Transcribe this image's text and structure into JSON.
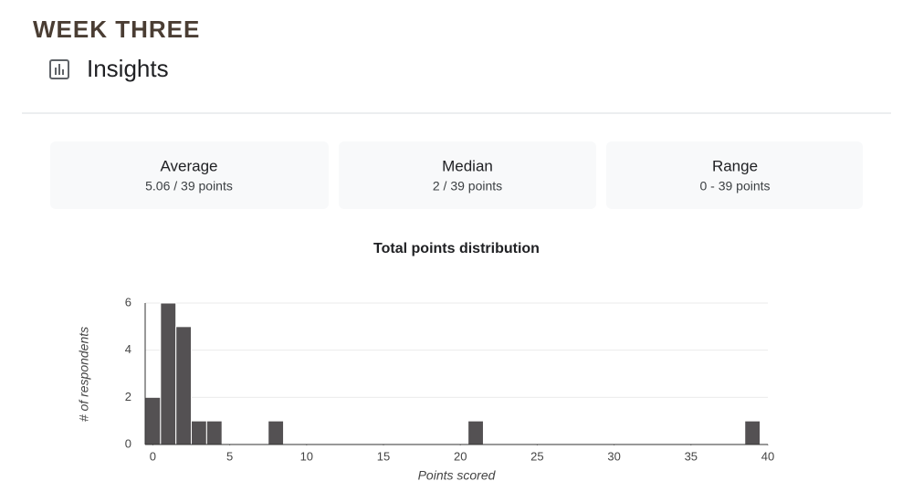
{
  "header": {
    "title": "WEEK THREE",
    "section": "Insights"
  },
  "stats": [
    {
      "label": "Average",
      "value": "5.06 / 39 points"
    },
    {
      "label": "Median",
      "value": "2 / 39 points"
    },
    {
      "label": "Range",
      "value": "0 - 39 points"
    }
  ],
  "chart_data": {
    "type": "histogram",
    "title": "Total points distribution",
    "x_label": "Points scored",
    "y_label": "# of respondents",
    "bins": [
      -0.5,
      0.5,
      1.5,
      2.5,
      3.5,
      4.5,
      5.5,
      6.5,
      7.5,
      8.5,
      9.5,
      10.5,
      11.5,
      12.5,
      13.5,
      14.5,
      15.5,
      16.5,
      17.5,
      18.5,
      19.5,
      20.5,
      21.5,
      22.5,
      23.5,
      24.5,
      25.5,
      26.5,
      27.5,
      28.5,
      29.5,
      30.5,
      31.5,
      32.5,
      33.5,
      34.5,
      35.5,
      36.5,
      37.5,
      38.5,
      39.5
    ],
    "counts": [
      2,
      6,
      5,
      1,
      1,
      0,
      0,
      0,
      1,
      0,
      0,
      0,
      0,
      0,
      0,
      0,
      0,
      0,
      0,
      0,
      0,
      1,
      0,
      0,
      0,
      0,
      0,
      0,
      0,
      0,
      0,
      0,
      0,
      0,
      0,
      0,
      0,
      0,
      0,
      1
    ],
    "color": "#545153",
    "xlim": [
      -0.5,
      40
    ],
    "ylim": [
      0,
      6
    ],
    "xticks": [
      0,
      5,
      10,
      15,
      20,
      25,
      30,
      35,
      40
    ],
    "yticks": [
      0,
      2,
      4,
      6
    ],
    "grid": true
  }
}
